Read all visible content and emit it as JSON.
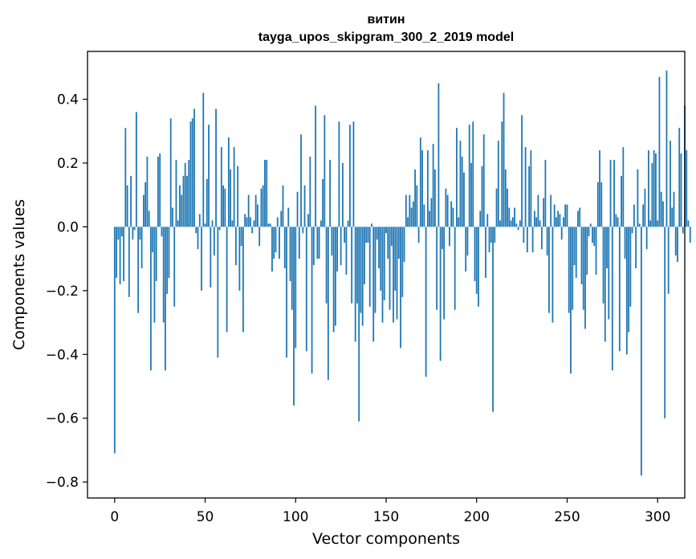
{
  "chart_data": {
    "type": "bar",
    "title": "витин",
    "subtitle": "tayga_upos_skipgram_300_2_2019 model",
    "xlabel": "Vector components",
    "ylabel": "Components values",
    "xlim": [
      -15,
      315
    ],
    "ylim": [
      -0.85,
      0.55
    ],
    "xticks": [
      0,
      50,
      100,
      150,
      200,
      250,
      300
    ],
    "xtick_labels": [
      "0",
      "50",
      "100",
      "150",
      "200",
      "250",
      "300"
    ],
    "yticks": [
      -0.8,
      -0.6,
      -0.4,
      -0.2,
      0.0,
      0.2,
      0.4
    ],
    "ytick_labels": [
      "−0.8",
      "−0.6",
      "−0.4",
      "−0.2",
      "0.0",
      "0.2",
      "0.4"
    ],
    "bar_color": "#1f77b4",
    "grid": false,
    "values": [
      -0.71,
      -0.16,
      -0.04,
      -0.18,
      -0.03,
      -0.17,
      0.31,
      0.13,
      -0.22,
      0.16,
      -0.04,
      -0.01,
      0.36,
      -0.27,
      -0.04,
      -0.13,
      0.1,
      0.14,
      0.22,
      0.05,
      -0.45,
      -0.08,
      -0.3,
      -0.17,
      0.22,
      0.23,
      -0.03,
      -0.3,
      -0.45,
      -0.21,
      -0.16,
      0.34,
      0.06,
      -0.25,
      0.21,
      0.02,
      0.13,
      0.1,
      0.16,
      0.2,
      0.16,
      0.21,
      0.33,
      0.34,
      0.37,
      -0.02,
      -0.07,
      0.04,
      -0.2,
      0.42,
      0.01,
      0.15,
      0.32,
      -0.19,
      0.02,
      -0.09,
      0.37,
      -0.41,
      -0.01,
      0.25,
      0.13,
      0.12,
      -0.33,
      0.28,
      0.18,
      0.02,
      0.25,
      -0.12,
      0.19,
      -0.2,
      -0.06,
      -0.33,
      0.04,
      0.03,
      0.1,
      0.03,
      -0.02,
      0.02,
      0.1,
      0.07,
      -0.06,
      0.12,
      0.13,
      0.21,
      0.21,
      0.01,
      0.01,
      -0.14,
      -0.1,
      -0.08,
      0.03,
      -0.1,
      0.05,
      0.13,
      -0.13,
      -0.41,
      0.06,
      -0.17,
      -0.26,
      -0.56,
      -0.38,
      0.11,
      -0.1,
      0.29,
      -0.02,
      0.13,
      -0.39,
      0.04,
      0.22,
      -0.46,
      -0.12,
      0.38,
      -0.1,
      -0.1,
      0.02,
      0.15,
      0.35,
      -0.24,
      -0.48,
      0.21,
      -0.09,
      -0.33,
      -0.31,
      -0.14,
      0.33,
      -0.12,
      0.2,
      -0.05,
      -0.15,
      0.02,
      0.32,
      -0.24,
      0.33,
      -0.36,
      -0.24,
      -0.61,
      -0.27,
      -0.31,
      -0.18,
      -0.05,
      -0.05,
      -0.25,
      0.01,
      -0.36,
      -0.27,
      -0.04,
      -0.13,
      -0.2,
      -0.3,
      -0.23,
      -0.02,
      -0.1,
      -0.26,
      -0.06,
      -0.3,
      -0.2,
      -0.29,
      -0.1,
      -0.38,
      -0.22,
      -0.11,
      0.1,
      0.03,
      0.1,
      0.06,
      0.08,
      0.18,
      0.13,
      -0.05,
      0.28,
      0.24,
      0.07,
      -0.47,
      0.24,
      0.05,
      0.09,
      0.26,
      0.18,
      -0.26,
      0.45,
      -0.42,
      -0.07,
      -0.29,
      0.12,
      0.1,
      -0.06,
      0.08,
      0.06,
      -0.26,
      0.31,
      0.03,
      0.27,
      0.22,
      0.17,
      -0.14,
      -0.09,
      0.32,
      0.2,
      0.33,
      -0.17,
      -0.21,
      -0.25,
      0.05,
      0.19,
      0.29,
      -0.16,
      0.04,
      -0.08,
      -0.05,
      -0.58,
      -0.05,
      0.12,
      0.27,
      0.02,
      0.33,
      0.42,
      0.18,
      0.12,
      0.06,
      0.02,
      0.03,
      0.06,
      0.01,
      -0.01,
      0.02,
      0.35,
      -0.05,
      0.25,
      -0.08,
      0.19,
      0.24,
      -0.08,
      0.05,
      0.03,
      0.1,
      0.02,
      -0.07,
      0.09,
      0.21,
      -0.09,
      -0.27,
      0.1,
      -0.3,
      0.07,
      0.03,
      0.05,
      0.04,
      -0.04,
      0.03,
      0.07,
      0.07,
      -0.27,
      -0.46,
      -0.26,
      -0.12,
      -0.16,
      0.05,
      0.06,
      -0.18,
      -0.26,
      -0.32,
      -0.15,
      -0.03,
      0.01,
      -0.05,
      -0.06,
      -0.15,
      0.14,
      0.24,
      0.14,
      -0.24,
      -0.36,
      -0.13,
      -0.29,
      0.21,
      -0.45,
      0.21,
      0.04,
      0.03,
      -0.39,
      0.16,
      0.25,
      -0.1,
      -0.4,
      -0.33,
      -0.25,
      -0.02,
      0.07,
      -0.13,
      0.18,
      0.01,
      -0.78,
      0.07,
      0.12,
      -0.07,
      0.24,
      0.02,
      0.2,
      0.24,
      0.23,
      0.02,
      0.47,
      0.11,
      0.08,
      -0.6,
      0.49,
      -0.21,
      0.27,
      0.06,
      0.11,
      -0.09,
      -0.11,
      0.31,
      0.23,
      -0.02,
      0.38,
      0.24,
      0.02,
      -0.05
    ]
  }
}
